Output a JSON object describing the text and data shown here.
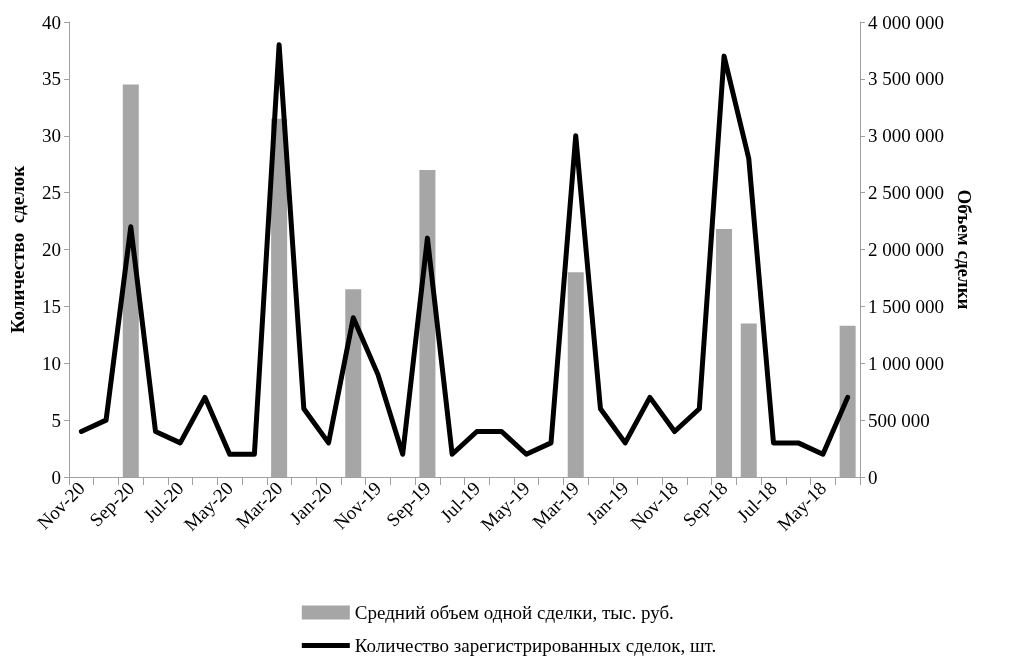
{
  "chart_data": {
    "type": "bar",
    "ylabel": "Количество  сделок",
    "y2label": "Объем сделки",
    "categories": [
      "Nov-20",
      null,
      "Sep-20",
      null,
      "Jul-20",
      null,
      "May-20",
      null,
      "Mar-20",
      null,
      "Jan-20",
      null,
      "Nov-19",
      null,
      "Sep-19",
      null,
      "Jul-19",
      null,
      "May-19",
      null,
      "Mar-19",
      null,
      "Jan-19",
      null,
      "Nov-18",
      null,
      "Sep-18",
      null,
      "Jul-18",
      null,
      "May-18",
      null
    ],
    "series": [
      {
        "name": "Средний объем одной сделки, тыс. руб.",
        "axis": "y2",
        "color": "#a6a6a6",
        "values": [
          null,
          null,
          3450000,
          null,
          null,
          null,
          null,
          null,
          3150000,
          null,
          null,
          1650000,
          null,
          null,
          2700000,
          null,
          null,
          null,
          null,
          null,
          1800000,
          null,
          null,
          null,
          null,
          null,
          2180000,
          1350000,
          null,
          null,
          null,
          1330000
        ]
      },
      {
        "name": "Количество зарегистрированных сделок, шт.",
        "type": "line",
        "color": "#000000",
        "values": [
          4,
          5,
          22,
          4,
          3,
          7,
          2,
          2,
          38,
          6,
          3,
          14,
          9,
          2,
          21,
          2,
          4,
          4,
          2,
          3,
          30,
          6,
          3,
          7,
          4,
          6,
          37,
          28,
          3,
          3,
          2,
          7
        ]
      }
    ],
    "ylim": [
      0,
      40
    ],
    "yticks": [
      0,
      5,
      10,
      15,
      20,
      25,
      30,
      35,
      40
    ],
    "y2lim": [
      0,
      4000000
    ],
    "y2ticks": [
      {
        "value": 0,
        "label": "0"
      },
      {
        "value": 500000,
        "label": "500 000"
      },
      {
        "value": 1000000,
        "label": "1 000 000"
      },
      {
        "value": 1500000,
        "label": "1 500 000"
      },
      {
        "value": 2000000,
        "label": "2 000 000"
      },
      {
        "value": 2500000,
        "label": "2 500 000"
      },
      {
        "value": 3000000,
        "label": "3 000 000"
      },
      {
        "value": 3500000,
        "label": "3 500 000"
      },
      {
        "value": 4000000,
        "label": "4 000 000"
      }
    ],
    "grid": false,
    "legend": "bottom",
    "marker": "none",
    "line_style": "solid"
  }
}
